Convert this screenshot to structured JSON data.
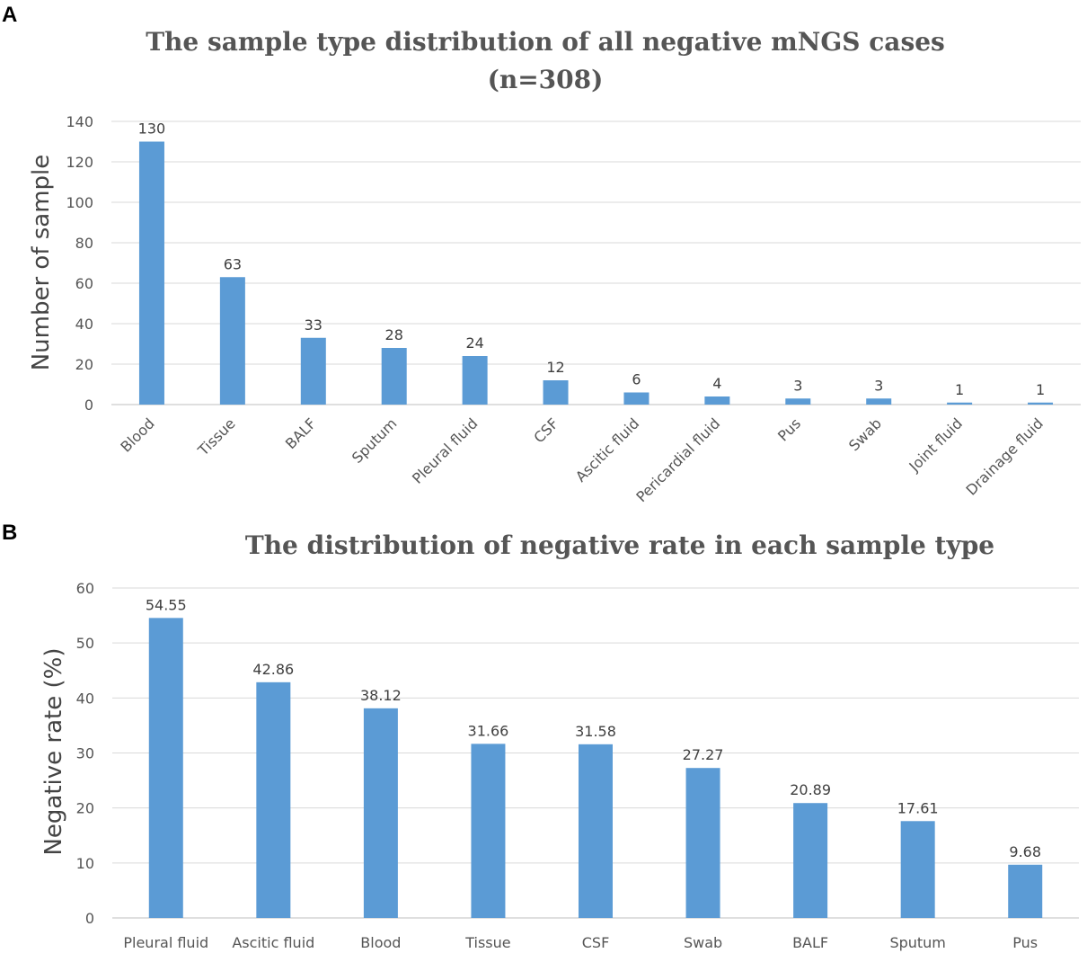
{
  "panel_labels": [
    "A",
    "B"
  ],
  "bar_color": "#5b9bd5",
  "chart_data": [
    {
      "type": "bar",
      "title": "The sample type distribution of all negative mNGS cases",
      "subtitle": "(n=308)",
      "xlabel": "",
      "ylabel": "Number of sample",
      "ylim": [
        0,
        140
      ],
      "yticks": [
        0,
        20,
        40,
        60,
        80,
        100,
        120,
        140
      ],
      "grid": true,
      "categories": [
        "Blood",
        "Tissue",
        "BALF",
        "Sputum",
        "Pleural fluid",
        "CSF",
        "Ascitic fluid",
        "Pericardial fluid",
        "Pus",
        "Swab",
        "Joint fluid",
        "Drainage fluid"
      ],
      "values": [
        130,
        63,
        33,
        28,
        24,
        12,
        6,
        4,
        3,
        3,
        1,
        1
      ],
      "labels": [
        "130",
        "63",
        "33",
        "28",
        "24",
        "12",
        "6",
        "4",
        "3",
        "3",
        "1",
        "1"
      ]
    },
    {
      "type": "bar",
      "title": "The distribution of negative rate in each sample type",
      "subtitle": "",
      "xlabel": "",
      "ylabel": "Negative rate (%)",
      "ylim": [
        0,
        60
      ],
      "yticks": [
        0,
        10,
        20,
        30,
        40,
        50,
        60
      ],
      "grid": true,
      "categories": [
        "Pleural fluid",
        "Ascitic fluid",
        "Blood",
        "Tissue",
        "CSF",
        "Swab",
        "BALF",
        "Sputum",
        "Pus"
      ],
      "values": [
        54.55,
        42.86,
        38.12,
        31.66,
        31.58,
        27.27,
        20.89,
        17.61,
        9.68
      ],
      "labels": [
        "54.55",
        "42.86",
        "38.12",
        "31.66",
        "31.58",
        "27.27",
        "20.89",
        "17.61",
        "9.68"
      ]
    }
  ]
}
